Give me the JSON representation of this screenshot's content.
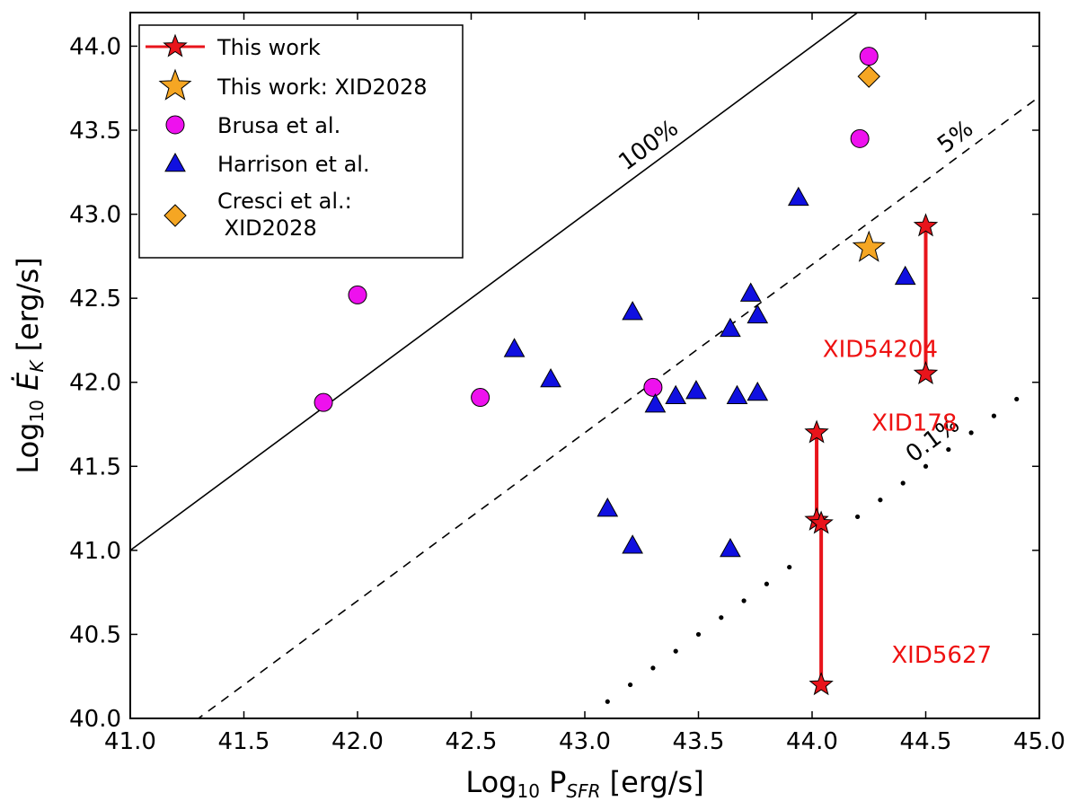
{
  "chart_data": {
    "type": "scatter",
    "xlabel": "Log10 PSFR [erg/s]",
    "ylabel": "Log10 ĖK [erg/s]",
    "xlim": [
      41.0,
      45.0
    ],
    "ylim": [
      40.0,
      44.2
    ],
    "x_ticks": [
      "41.0",
      "41.5",
      "42.0",
      "42.5",
      "43.0",
      "43.5",
      "44.0",
      "44.5",
      "45.0"
    ],
    "y_ticks": [
      "40.0",
      "40.5",
      "41.0",
      "41.5",
      "42.0",
      "42.5",
      "43.0",
      "43.5",
      "44.0"
    ],
    "grid": false,
    "legend_position": "top-left",
    "reference_lines": [
      {
        "name": "100%",
        "offset": 0.0,
        "style": "solid",
        "label": "100%",
        "label_x": 43.3
      },
      {
        "name": "5%",
        "offset": -1.3,
        "style": "dashed",
        "label": "5%",
        "label_x": 44.65
      },
      {
        "name": "0.1%",
        "offset": -3.0,
        "style": "dotted",
        "label": "0.1%",
        "label_x": 44.55
      }
    ],
    "series": [
      {
        "name": "This work",
        "marker": "star",
        "color": "#e8141b",
        "pairs": [
          {
            "id": "XID54204",
            "x": 44.5,
            "y_low": 42.05,
            "y_high": 42.93
          },
          {
            "id": "XID178",
            "x": 44.02,
            "y_low": 41.18,
            "y_high": 41.7
          },
          {
            "id": "XID5627",
            "x": 44.04,
            "y_low": 40.2,
            "y_high": 41.16
          }
        ]
      },
      {
        "name": "This work: XID2028",
        "marker": "star",
        "color": "#f5a623",
        "points": [
          {
            "x": 44.25,
            "y": 42.8
          }
        ]
      },
      {
        "name": "Brusa et al.",
        "marker": "circle",
        "color": "#ee11ee",
        "points": [
          {
            "x": 41.85,
            "y": 41.88
          },
          {
            "x": 42.0,
            "y": 42.52
          },
          {
            "x": 42.54,
            "y": 41.91
          },
          {
            "x": 43.3,
            "y": 41.97
          },
          {
            "x": 44.21,
            "y": 43.45
          },
          {
            "x": 44.25,
            "y": 43.94
          }
        ]
      },
      {
        "name": "Harrison et al.",
        "marker": "triangle",
        "color": "#1010e0",
        "points": [
          {
            "x": 42.69,
            "y": 42.2
          },
          {
            "x": 42.85,
            "y": 42.02
          },
          {
            "x": 43.1,
            "y": 41.25
          },
          {
            "x": 43.21,
            "y": 42.42
          },
          {
            "x": 43.21,
            "y": 41.03
          },
          {
            "x": 43.31,
            "y": 41.87
          },
          {
            "x": 43.4,
            "y": 41.92
          },
          {
            "x": 43.49,
            "y": 41.95
          },
          {
            "x": 43.64,
            "y": 42.32
          },
          {
            "x": 43.64,
            "y": 41.01
          },
          {
            "x": 43.67,
            "y": 41.92
          },
          {
            "x": 43.73,
            "y": 42.53
          },
          {
            "x": 43.76,
            "y": 42.4
          },
          {
            "x": 43.76,
            "y": 41.94
          },
          {
            "x": 43.94,
            "y": 43.1
          },
          {
            "x": 44.41,
            "y": 42.63
          }
        ]
      },
      {
        "name": "Cresci et al.:\n XID2028",
        "marker": "diamond",
        "color": "#f5a623",
        "points": [
          {
            "x": 44.25,
            "y": 43.82
          }
        ]
      }
    ],
    "annotations": [
      {
        "text": "XID54204",
        "x": 44.3,
        "y": 42.2,
        "color": "#ee1111"
      },
      {
        "text": "XID178",
        "x": 44.45,
        "y": 41.76,
        "color": "#ee1111"
      },
      {
        "text": "XID5627",
        "x": 44.57,
        "y": 40.38,
        "color": "#ee1111"
      }
    ],
    "legend": [
      {
        "label": "This work",
        "marker": "star-line",
        "color": "#e8141b"
      },
      {
        "label": "This work: XID2028",
        "marker": "star",
        "color": "#f5a623"
      },
      {
        "label": "Brusa et al.",
        "marker": "circle",
        "color": "#ee11ee"
      },
      {
        "label": "Harrison et al.",
        "marker": "triangle",
        "color": "#1010e0"
      },
      {
        "label_lines": [
          "Cresci et al.:",
          " XID2028"
        ],
        "marker": "diamond",
        "color": "#f5a623"
      }
    ]
  }
}
